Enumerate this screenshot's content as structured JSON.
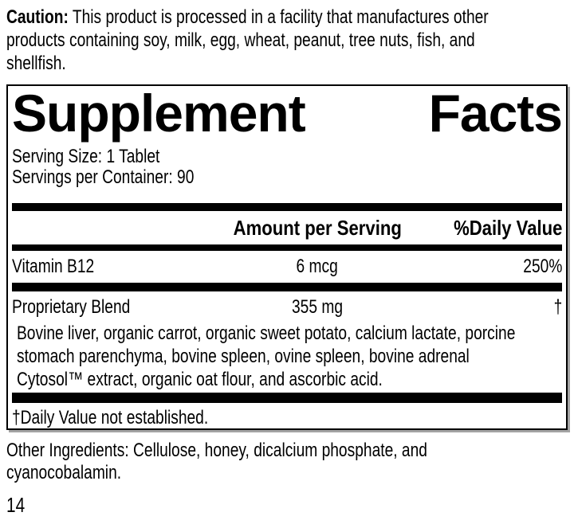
{
  "colors": {
    "text": "#000000",
    "rule": "#000000",
    "panel_border": "#000000",
    "shadow": "#a3a3a3",
    "background": "#ffffff"
  },
  "caution": {
    "label": "Caution:",
    "line1_rest": " This product is processed in a facility that manufactures other",
    "line2": "products containing soy, milk, egg, wheat, peanut, tree nuts, fish, and",
    "line3": "shellfish."
  },
  "panel": {
    "title": {
      "word1": "Supplement",
      "word2": "Facts"
    },
    "serving_size": "Serving Size: 1 Tablet",
    "servings_per_container": "Servings per Container: 90",
    "header": {
      "amount": "Amount per Serving",
      "daily_value": "%Daily Value"
    },
    "rows": [
      {
        "name": "Vitamin B12",
        "amount": "6 mcg",
        "daily_value": "250%"
      },
      {
        "name": "Proprietary Blend",
        "amount": "355 mg",
        "daily_value": "†",
        "description": {
          "line1": "Bovine liver, organic carrot, organic sweet potato, calcium lactate, porcine",
          "line2": "stomach parenchyma, bovine spleen, ovine spleen, bovine adrenal",
          "line3": "Cytosol™ extract, organic oat flour, and ascorbic acid."
        }
      }
    ],
    "footnote": "†Daily Value not established."
  },
  "other_ingredients": {
    "line1": "Other Ingredients: Cellulose, honey, dicalcium phosphate, and",
    "line2": "cyanocobalamin."
  },
  "page_number": "14"
}
